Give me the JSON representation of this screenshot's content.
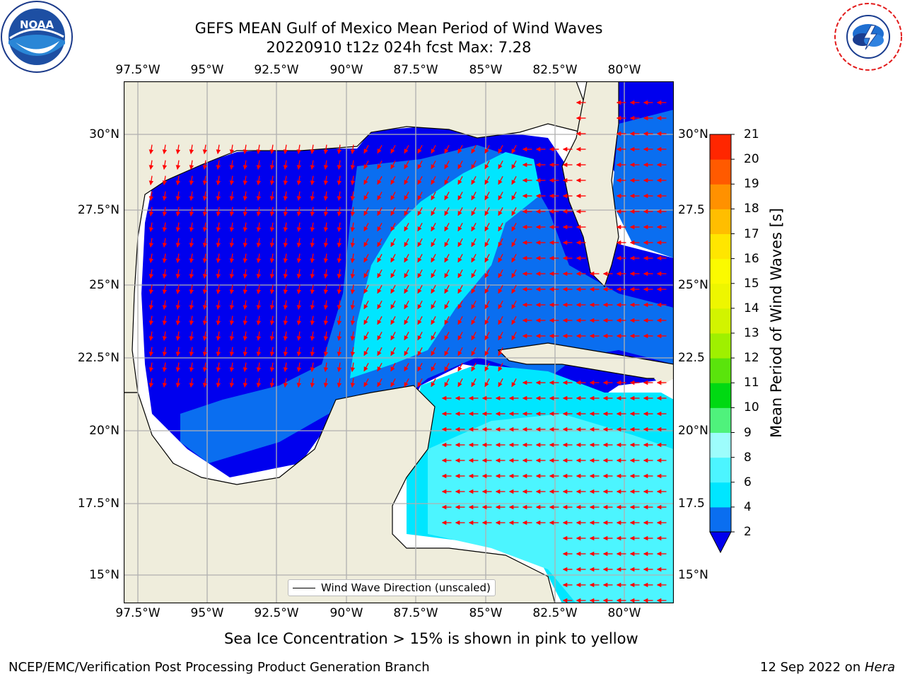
{
  "title": {
    "line1": "GEFS MEAN Gulf of Mexico Mean Period of Wind Waves",
    "line2": "20220910 t12z 024h fcst   Max: 7.28"
  },
  "logos": {
    "left": {
      "name": "noaa-logo",
      "text": "NOAA"
    },
    "right": {
      "name": "nws-logo",
      "text": "NATIONAL WEATHER SERVICE"
    }
  },
  "map": {
    "lon_labels": [
      "97.5°W",
      "95°W",
      "92.5°W",
      "90°W",
      "87.5°W",
      "85°W",
      "82.5°W",
      "80°W"
    ],
    "lat_labels_left": [
      "30°N",
      "27.5°N",
      "25°N",
      "22.5°N",
      "20°N",
      "17.5°N",
      "15°N"
    ],
    "lat_labels_right": [
      "30°N",
      "27.5",
      "25°N",
      "22.5",
      "20°N",
      "17.5",
      "15°N"
    ],
    "land_color": "#efeddc",
    "grid_color": "#b0b0b0"
  },
  "legend": {
    "label": "Wind Wave Direction (unscaled)"
  },
  "colorbar": {
    "label": "Mean Period of Wind Waves [s]",
    "ticks": [
      "2",
      "4",
      "6",
      "8",
      "9",
      "10",
      "11",
      "12",
      "13",
      "14",
      "15",
      "16",
      "17",
      "18",
      "19",
      "20",
      "21"
    ],
    "colors": [
      "#0a6ef0",
      "#00e6ff",
      "#4cf5ff",
      "#9dfdfc",
      "#4ff27c",
      "#00d912",
      "#5ae40c",
      "#9ff000",
      "#d2f400",
      "#eef600",
      "#fbfa00",
      "#ffe600",
      "#ffbe00",
      "#ff9100",
      "#ff5a00",
      "#ff2600"
    ],
    "extend_color": "#0000ee"
  },
  "notes": {
    "sea_ice": "Sea Ice Concentration > 15% is shown in pink to yellow",
    "footer_left": "NCEP/EMC/Verification Post Processing Product Generation Branch",
    "footer_right_prefix": "12 Sep 2022 on ",
    "footer_right_host": "Hera"
  }
}
